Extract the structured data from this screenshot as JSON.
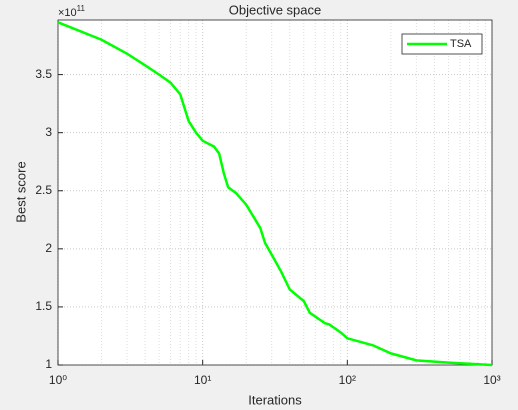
{
  "chart_data": {
    "type": "line",
    "title": "Objective space",
    "x_label": "Iterations",
    "y_label": "Best score",
    "y_multiplier": {
      "base": "×10",
      "exponent": "11"
    },
    "x_scale": "log",
    "grid": true,
    "minor_grid": true,
    "legend_position": "top-right",
    "xlim": [
      1,
      1000
    ],
    "xticks": [
      {
        "value": 1,
        "label": "10⁰"
      },
      {
        "value": 10,
        "label": "10¹"
      },
      {
        "value": 100,
        "label": "10²"
      },
      {
        "value": 1000,
        "label": "10³"
      }
    ],
    "ylim": [
      1,
      3.97
    ],
    "yticks": [
      1,
      1.5,
      2,
      2.5,
      3,
      3.5
    ],
    "x": [
      1,
      2,
      3,
      4,
      5,
      6,
      7,
      8,
      9,
      10,
      12,
      13,
      14,
      15,
      17,
      20,
      25,
      27,
      30,
      35,
      40,
      50,
      55,
      70,
      75,
      90,
      100,
      150,
      200,
      300,
      500,
      1000
    ],
    "series": [
      {
        "name": "TSA",
        "color": "#00ff00",
        "values": [
          3.95,
          3.8,
          3.68,
          3.58,
          3.5,
          3.43,
          3.33,
          3.1,
          3.0,
          2.93,
          2.88,
          2.82,
          2.65,
          2.53,
          2.48,
          2.38,
          2.18,
          2.05,
          1.95,
          1.8,
          1.65,
          1.55,
          1.45,
          1.36,
          1.35,
          1.28,
          1.23,
          1.17,
          1.1,
          1.04,
          1.02,
          1.0
        ]
      }
    ]
  }
}
